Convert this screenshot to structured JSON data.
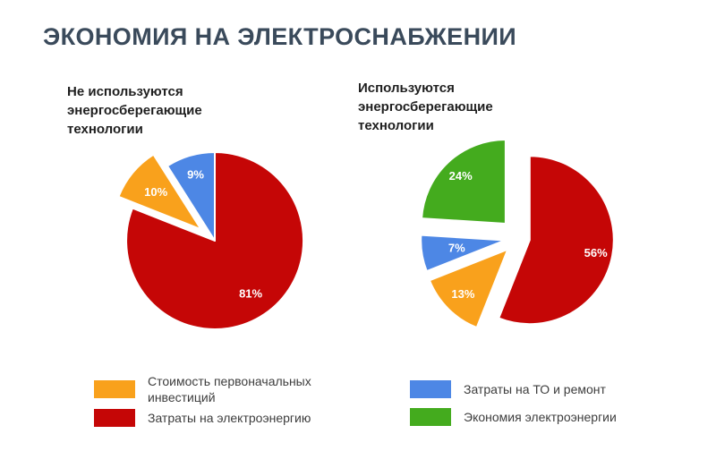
{
  "page": {
    "title": "ЭКОНОМИЯ НА ЭЛЕКТРОСНАБЖЕНИИ",
    "title_color": "#3a4a5b",
    "background": "#ffffff"
  },
  "chart_data": [
    {
      "type": "pie",
      "title": "Не используются\nэнергосберегающие\nтехнологии",
      "unit": "%",
      "total": 100,
      "start_angle": 0,
      "direction": "clockwise",
      "legend_position": "bottom",
      "slices": [
        {
          "name": "Затраты на электроэнергию",
          "value": 81,
          "label": "81%",
          "color": "#c50606",
          "explode": 0,
          "label_r": 0.72
        },
        {
          "name": "Стоимость первоначальных инвестиций",
          "value": 10,
          "label": "10%",
          "color": "#f9a11c",
          "explode": 20,
          "label_r": 0.66
        },
        {
          "name": "Затраты на ТО и ремонт",
          "value": 9,
          "label": "9%",
          "color": "#4d87e5",
          "explode": 0,
          "label_r": 0.78
        }
      ],
      "legend": [
        {
          "label": "Стоимость первоначальных инвестиций",
          "color": "#f9a11c"
        },
        {
          "label": "Затраты на электроэнергию",
          "color": "#c50606"
        }
      ]
    },
    {
      "type": "pie",
      "title": "Используются\nэнергосберегающие\nтехнологии",
      "unit": "%",
      "total": 100,
      "start_angle": 0,
      "direction": "clockwise",
      "legend_position": "bottom",
      "slices": [
        {
          "name": "Затраты на электроэнергию",
          "value": 56,
          "label": "56%",
          "color": "#c50606",
          "explode": 12,
          "label_r": 0.8
        },
        {
          "name": "Стоимость первоначальных инвестиций",
          "value": 13,
          "label": "13%",
          "color": "#f9a11c",
          "explode": 18,
          "label_r": 0.75
        },
        {
          "name": "Затраты на ТО и ремонт",
          "value": 7,
          "label": "7%",
          "color": "#4d87e5",
          "explode": 16,
          "label_r": 0.58
        },
        {
          "name": "Экономия электроэнергии",
          "value": 24,
          "label": "24%",
          "color": "#44ab1e",
          "explode": 22,
          "label_r": 0.78
        }
      ],
      "legend": [
        {
          "label": "Затраты на ТО и ремонт",
          "color": "#4d87e5"
        },
        {
          "label": "Экономия электроэнергии",
          "color": "#44ab1e"
        }
      ]
    }
  ]
}
